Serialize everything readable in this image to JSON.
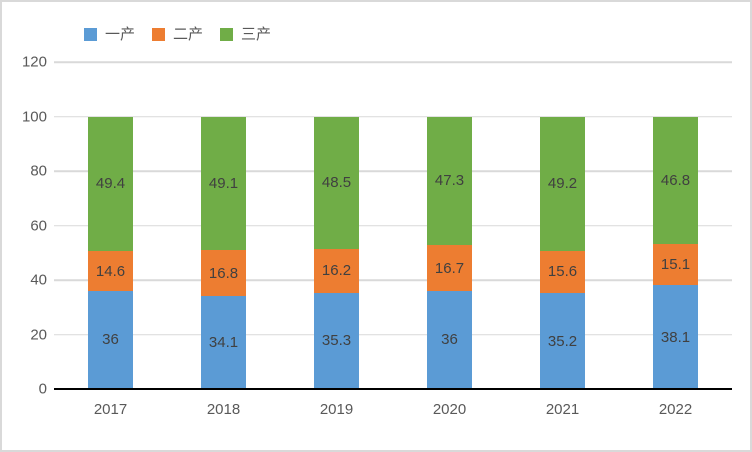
{
  "chart_data": {
    "type": "bar",
    "stacked": true,
    "title": "",
    "xlabel": "",
    "ylabel": "",
    "categories": [
      "2017",
      "2018",
      "2019",
      "2020",
      "2021",
      "2022"
    ],
    "series": [
      {
        "name": "一产",
        "color": "#5B9BD5",
        "values": [
          36,
          34.1,
          35.3,
          36,
          35.2,
          38.1
        ]
      },
      {
        "name": "二产",
        "color": "#ED7D31",
        "values": [
          14.6,
          16.8,
          16.2,
          16.7,
          15.6,
          15.1
        ]
      },
      {
        "name": "三产",
        "color": "#70AD47",
        "values": [
          49.4,
          49.1,
          48.5,
          47.3,
          49.2,
          46.8
        ]
      }
    ],
    "ylim": [
      0,
      120
    ],
    "ytick_step": 20,
    "grid": true,
    "data_labels": true,
    "legend_position": "top",
    "colors": {
      "gridline": "#d9d9d9",
      "axis_line": "#000000",
      "tick_label": "#595959",
      "data_label": "#404040",
      "chart_border": "#d9d9d9",
      "background": "#ffffff"
    }
  }
}
